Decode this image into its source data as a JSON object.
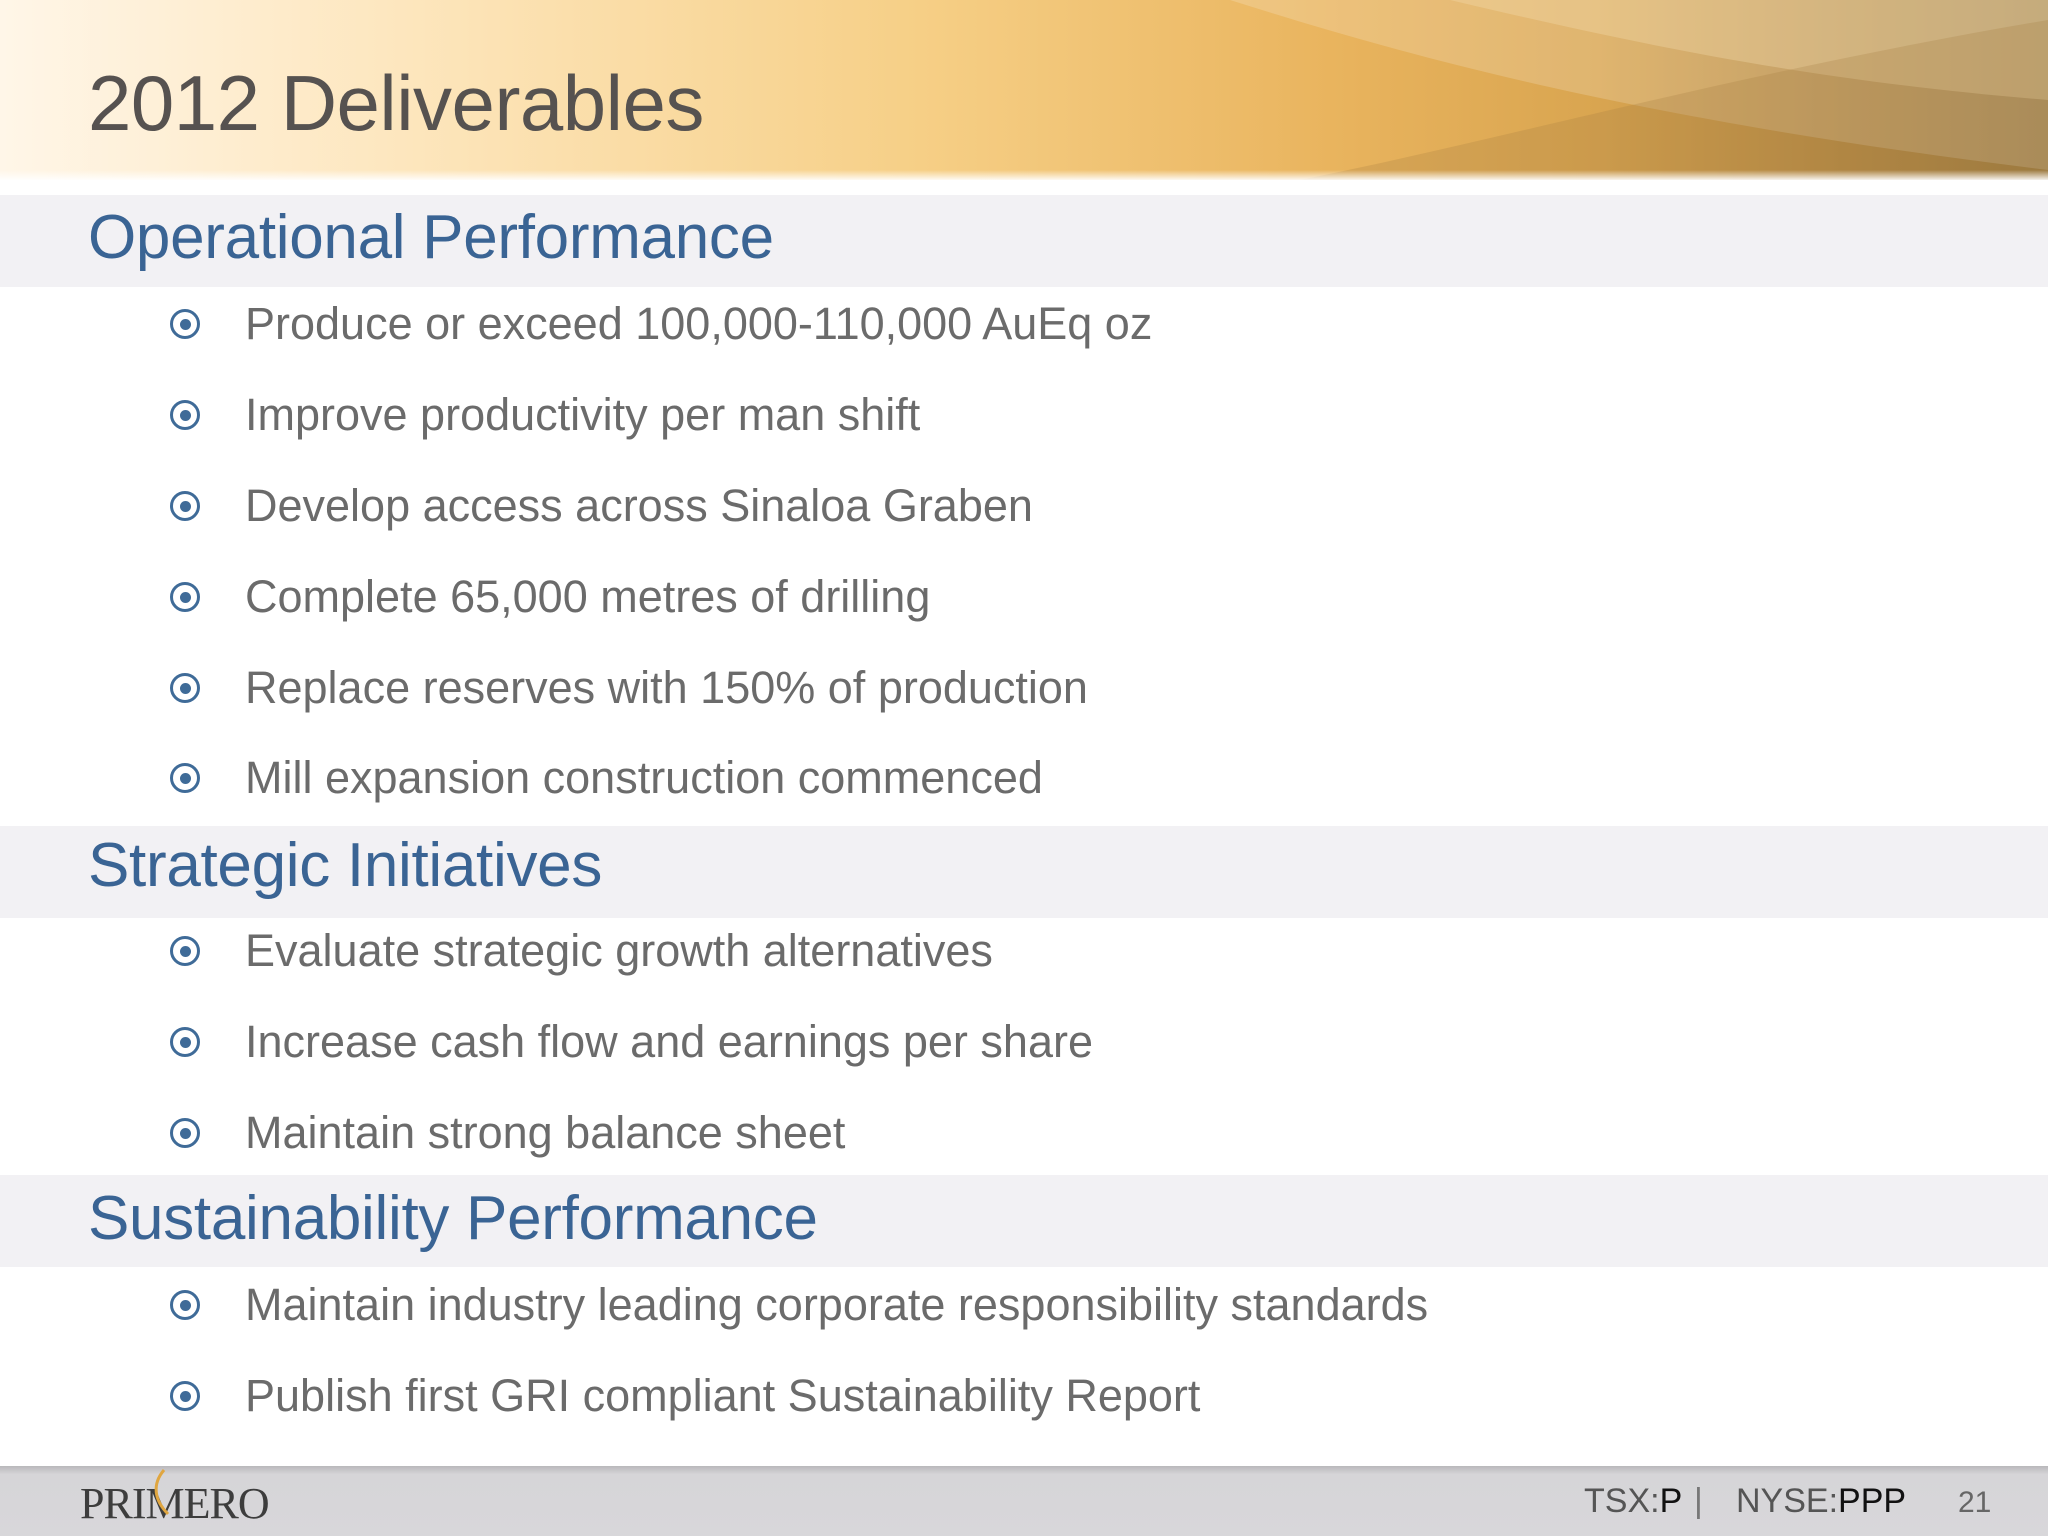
{
  "slide": {
    "title": "2012 Deliverables",
    "page_number": "21"
  },
  "sections": [
    {
      "heading": "Operational Performance",
      "items": [
        "Produce or exceed 100,000-110,000 AuEq oz",
        "Improve productivity per man shift",
        "Develop access across Sinaloa Graben",
        "Complete 65,000 metres of drilling",
        "Replace reserves with 150% of production",
        "Mill expansion construction commenced"
      ]
    },
    {
      "heading": "Strategic Initiatives",
      "items": [
        "Evaluate strategic growth alternatives",
        "Increase cash flow and earnings per share",
        "Maintain strong balance sheet"
      ]
    },
    {
      "heading": "Sustainability Performance",
      "items": [
        "Maintain industry leading corporate responsibility standards",
        "Publish first GRI compliant Sustainability Report"
      ]
    }
  ],
  "footer": {
    "logo_text": "PRIMERO",
    "tsx_label": "TSX:",
    "tsx_symbol": "P",
    "separator": "|",
    "nyse_label": "NYSE:",
    "nyse_symbol": "PPP"
  },
  "colors": {
    "heading": "#3a6494",
    "body_text": "#6b6b6b",
    "bullet": "#3f6b98",
    "section_band": "#f2f1f4"
  },
  "icons": {
    "bullet": "target-bullet-icon"
  }
}
